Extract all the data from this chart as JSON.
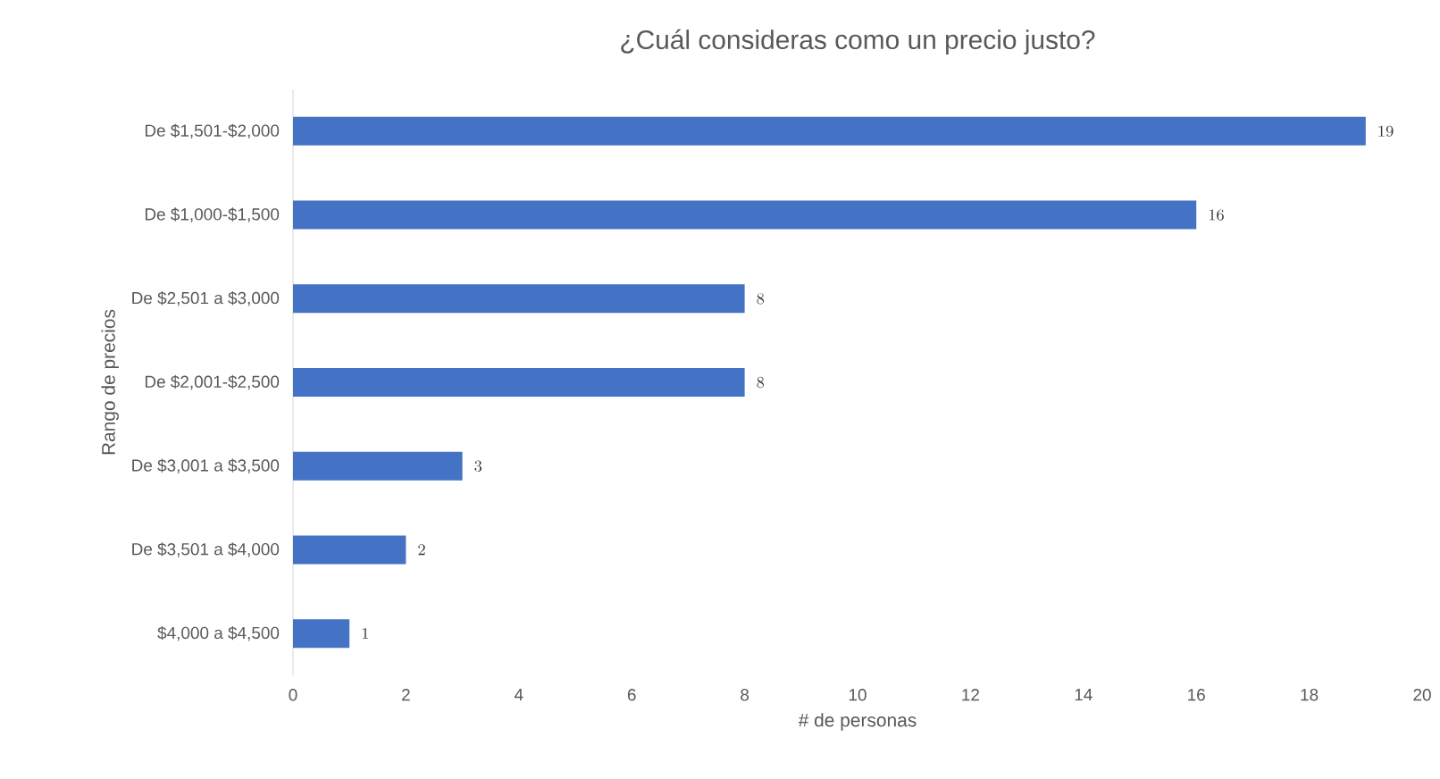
{
  "chart_data": {
    "type": "bar",
    "orientation": "horizontal",
    "title": "¿Cuál consideras como un precio justo?",
    "xlabel": "# de personas",
    "ylabel": "Rango de precios",
    "categories": [
      "De $1,501-$2,000",
      "De $1,000-$1,500",
      "De $2,501 a $3,000",
      "De $2,001-$2,500",
      "De $3,001 a $3,500",
      "De $3,501 a $4,000",
      "$4,000 a $4,500"
    ],
    "values": [
      19,
      16,
      8,
      8,
      3,
      2,
      1
    ],
    "color": "#4472c4",
    "xlim": [
      0,
      20
    ],
    "xticks": [
      0,
      2,
      4,
      6,
      8,
      10,
      12,
      14,
      16,
      18,
      20
    ],
    "data_labels": true
  }
}
